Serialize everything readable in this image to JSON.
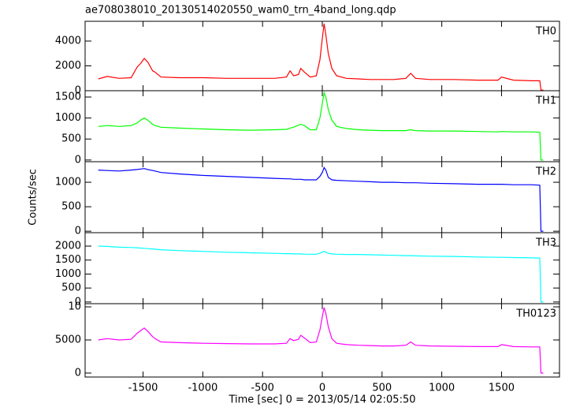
{
  "chart_data": {
    "type": "line",
    "title": "ae708038010_20130514020550_wam0_trn_4band_long.qdp",
    "xlabel": "Time [sec] 0 = 2013/05/14 02:05:50",
    "ylabel": "Counts/sec",
    "xlim": [
      -1985,
      1985
    ],
    "xticks": [
      -1500,
      -1000,
      -500,
      0,
      500,
      1000,
      1500
    ],
    "x": [
      -1875,
      -1800,
      -1700,
      -1600,
      -1550,
      -1520,
      -1490,
      -1460,
      -1420,
      -1400,
      -1350,
      -1200,
      -1000,
      -800,
      -600,
      -400,
      -300,
      -270,
      -240,
      -200,
      -180,
      -150,
      -100,
      -50,
      -20,
      0,
      15,
      30,
      50,
      80,
      120,
      200,
      300,
      400,
      500,
      600,
      700,
      740,
      780,
      900,
      1100,
      1300,
      1470,
      1500,
      1600,
      1750,
      1820,
      1830,
      1850
    ],
    "series": [
      {
        "name": "TH0",
        "color": "#ff0000",
        "ylim": [
          0,
          5590
        ],
        "yticks": [
          0,
          2000,
          4000
        ],
        "values": [
          950,
          1150,
          1000,
          1050,
          1900,
          2200,
          2600,
          2300,
          1600,
          1500,
          1100,
          1050,
          1050,
          1000,
          1000,
          1000,
          1100,
          1600,
          1200,
          1300,
          1800,
          1500,
          1100,
          1200,
          2500,
          4200,
          5400,
          4500,
          3000,
          1800,
          1200,
          1000,
          950,
          900,
          900,
          900,
          1000,
          1400,
          1000,
          900,
          900,
          850,
          850,
          1100,
          850,
          800,
          800,
          50,
          50
        ]
      },
      {
        "name": "TH1",
        "color": "#00ff00",
        "ylim": [
          -40,
          1650
        ],
        "yticks": [
          0,
          500,
          1000,
          1500
        ],
        "values": [
          800,
          820,
          800,
          820,
          880,
          950,
          1000,
          950,
          850,
          820,
          780,
          760,
          740,
          720,
          710,
          720,
          730,
          760,
          780,
          830,
          850,
          820,
          720,
          720,
          1000,
          1350,
          1600,
          1500,
          1200,
          950,
          800,
          750,
          720,
          710,
          700,
          700,
          700,
          720,
          700,
          690,
          690,
          680,
          670,
          680,
          670,
          670,
          660,
          0,
          0
        ]
      },
      {
        "name": "TH2",
        "color": "#0000ff",
        "ylim": [
          -30,
          1420
        ],
        "yticks": [
          0,
          500,
          1000
        ],
        "values": [
          1250,
          1240,
          1230,
          1250,
          1260,
          1270,
          1280,
          1260,
          1240,
          1230,
          1200,
          1170,
          1140,
          1120,
          1100,
          1080,
          1070,
          1070,
          1060,
          1060,
          1060,
          1050,
          1050,
          1050,
          1120,
          1200,
          1300,
          1250,
          1100,
          1050,
          1040,
          1030,
          1020,
          1010,
          1000,
          1000,
          990,
          990,
          990,
          980,
          970,
          960,
          960,
          960,
          950,
          950,
          940,
          0,
          0
        ]
      },
      {
        "name": "TH3",
        "color": "#00ffff",
        "ylim": [
          -60,
          2480
        ],
        "yticks": [
          0,
          500,
          1000,
          1500,
          2000
        ],
        "values": [
          2000,
          1990,
          1960,
          1950,
          1940,
          1930,
          1920,
          1910,
          1900,
          1890,
          1870,
          1840,
          1810,
          1780,
          1760,
          1740,
          1730,
          1730,
          1720,
          1720,
          1720,
          1710,
          1710,
          1710,
          1750,
          1780,
          1820,
          1780,
          1740,
          1720,
          1710,
          1700,
          1700,
          1690,
          1680,
          1670,
          1660,
          1660,
          1650,
          1640,
          1630,
          1610,
          1600,
          1600,
          1590,
          1580,
          1570,
          0,
          0
        ]
      },
      {
        "name": "TH0123",
        "color": "#ff00ff",
        "ylim": [
          -600,
          10480
        ],
        "yticks": [
          0,
          5000,
          {
            "value": 10000,
            "label": "10"
          }
        ],
        "values": [
          5000,
          5200,
          5000,
          5100,
          6000,
          6400,
          6800,
          6300,
          5500,
          5200,
          4700,
          4600,
          4500,
          4450,
          4400,
          4400,
          4500,
          5200,
          4900,
          5100,
          5700,
          5300,
          4600,
          4700,
          6500,
          8500,
          9900,
          9000,
          7000,
          5200,
          4500,
          4300,
          4200,
          4150,
          4100,
          4100,
          4200,
          4700,
          4200,
          4100,
          4050,
          4000,
          4000,
          4300,
          4000,
          3950,
          3950,
          0,
          0
        ]
      }
    ]
  }
}
